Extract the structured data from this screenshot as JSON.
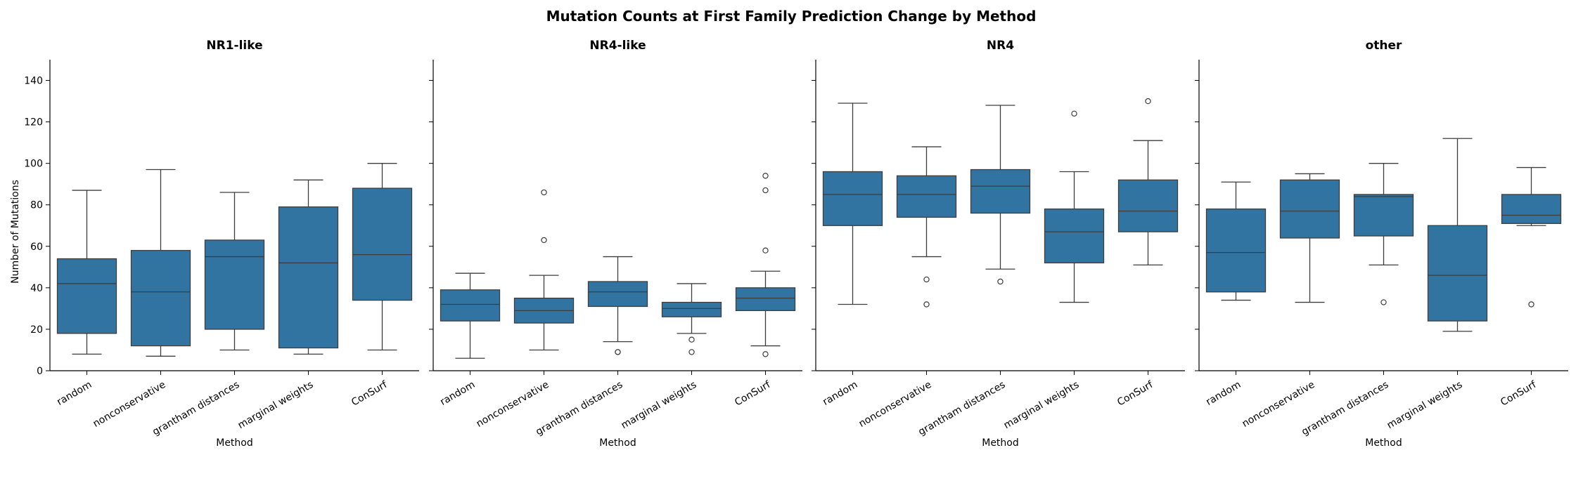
{
  "chart_data": {
    "type": "box",
    "title": "Mutation Counts at First Family Prediction Change by Method",
    "xlabel": "Method",
    "ylabel": "Number of Mutations",
    "ylim": [
      0,
      150
    ],
    "yticks": [
      0,
      20,
      40,
      60,
      80,
      100,
      120,
      140
    ],
    "categories": [
      "random",
      "nonconservative",
      "grantham distances",
      "marginal weights",
      "ConSurf"
    ],
    "box_color": "#3274a1",
    "line_color": "#3d3d3d",
    "grid": false,
    "panels": [
      {
        "title": "NR1-like",
        "boxes": [
          {
            "whisker_low": 8,
            "q1": 18,
            "median": 42,
            "q3": 54,
            "whisker_high": 87,
            "outliers": []
          },
          {
            "whisker_low": 7,
            "q1": 12,
            "median": 38,
            "q3": 58,
            "whisker_high": 97,
            "outliers": []
          },
          {
            "whisker_low": 10,
            "q1": 20,
            "median": 55,
            "q3": 63,
            "whisker_high": 86,
            "outliers": []
          },
          {
            "whisker_low": 8,
            "q1": 11,
            "median": 52,
            "q3": 79,
            "whisker_high": 92,
            "outliers": []
          },
          {
            "whisker_low": 10,
            "q1": 34,
            "median": 56,
            "q3": 88,
            "whisker_high": 100,
            "outliers": []
          }
        ]
      },
      {
        "title": "NR4-like",
        "boxes": [
          {
            "whisker_low": 6,
            "q1": 24,
            "median": 32,
            "q3": 39,
            "whisker_high": 47,
            "outliers": []
          },
          {
            "whisker_low": 10,
            "q1": 23,
            "median": 29,
            "q3": 35,
            "whisker_high": 46,
            "outliers": [
              63,
              86
            ]
          },
          {
            "whisker_low": 14,
            "q1": 31,
            "median": 38,
            "q3": 43,
            "whisker_high": 55,
            "outliers": [
              9,
              9
            ]
          },
          {
            "whisker_low": 18,
            "q1": 26,
            "median": 30,
            "q3": 33,
            "whisker_high": 42,
            "outliers": [
              9,
              15
            ]
          },
          {
            "whisker_low": 12,
            "q1": 29,
            "median": 35,
            "q3": 40,
            "whisker_high": 48,
            "outliers": [
              8,
              58,
              87,
              94
            ]
          }
        ]
      },
      {
        "title": "NR4",
        "boxes": [
          {
            "whisker_low": 32,
            "q1": 70,
            "median": 85,
            "q3": 96,
            "whisker_high": 129,
            "outliers": []
          },
          {
            "whisker_low": 55,
            "q1": 74,
            "median": 85,
            "q3": 94,
            "whisker_high": 108,
            "outliers": [
              32,
              44
            ]
          },
          {
            "whisker_low": 49,
            "q1": 76,
            "median": 89,
            "q3": 97,
            "whisker_high": 128,
            "outliers": [
              43
            ]
          },
          {
            "whisker_low": 33,
            "q1": 52,
            "median": 67,
            "q3": 78,
            "whisker_high": 96,
            "outliers": [
              124
            ]
          },
          {
            "whisker_low": 51,
            "q1": 67,
            "median": 77,
            "q3": 92,
            "whisker_high": 111,
            "outliers": [
              130
            ]
          }
        ]
      },
      {
        "title": "other",
        "boxes": [
          {
            "whisker_low": 34,
            "q1": 38,
            "median": 57,
            "q3": 78,
            "whisker_high": 91,
            "outliers": []
          },
          {
            "whisker_low": 33,
            "q1": 64,
            "median": 77,
            "q3": 92,
            "whisker_high": 95,
            "outliers": []
          },
          {
            "whisker_low": 51,
            "q1": 65,
            "median": 84,
            "q3": 85,
            "whisker_high": 100,
            "outliers": [
              33
            ]
          },
          {
            "whisker_low": 19,
            "q1": 24,
            "median": 46,
            "q3": 70,
            "whisker_high": 112,
            "outliers": []
          },
          {
            "whisker_low": 70,
            "q1": 71,
            "median": 75,
            "q3": 85,
            "whisker_high": 98,
            "outliers": [
              32
            ]
          }
        ]
      }
    ]
  }
}
